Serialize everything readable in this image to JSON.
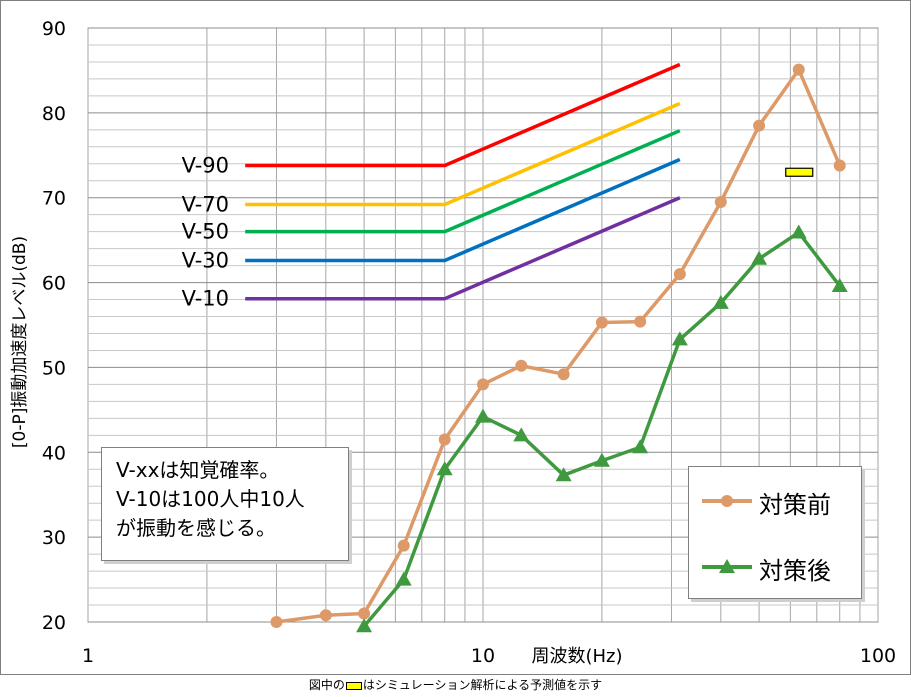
{
  "chart_data": {
    "type": "line",
    "xscale": "log",
    "xlim": [
      1,
      100
    ],
    "ylim": [
      20,
      90
    ],
    "yticks": [
      20,
      30,
      40,
      50,
      60,
      70,
      80,
      90
    ],
    "xtick_labels": [
      "1",
      "10",
      "100"
    ],
    "xlabel": "周波数(Hz)",
    "ylabel": "[0-P]振動加速度レベル(dB)",
    "grid": true,
    "legend_position": "bottom-right",
    "series": [
      {
        "name": "対策前",
        "color": "#dd9a68",
        "marker": "circle",
        "x": [
          5,
          6.3,
          8,
          10,
          12.5,
          16,
          20,
          25,
          31.5,
          40,
          50,
          63,
          80
        ],
        "y": [
          21,
          29,
          41.5,
          48,
          50.2,
          49.2,
          55.3,
          55.4,
          61,
          69.5,
          78.5,
          85.1,
          73.8
        ]
      },
      {
        "name": "対策後",
        "color": "#3f9a3f",
        "marker": "triangle",
        "x": [
          5,
          6.3,
          8,
          10,
          12.5,
          16,
          20,
          25,
          31.5,
          40,
          50,
          63,
          80
        ],
        "y": [
          19.5,
          25,
          38,
          44.2,
          42,
          37.3,
          39,
          40.6,
          53.3,
          57.6,
          62.8,
          65.9,
          59.6
        ]
      }
    ],
    "extra_points_before": {
      "x": [
        3,
        4
      ],
      "y": [
        20,
        20.8
      ]
    },
    "reference_lines": [
      {
        "label": "V-90",
        "color": "#ff0000",
        "x": [
          2.5,
          8,
          31.5
        ],
        "y": [
          73.8,
          73.8,
          85.7
        ]
      },
      {
        "label": "V-70",
        "color": "#ffc000",
        "x": [
          2.5,
          8,
          31.5
        ],
        "y": [
          69.2,
          69.2,
          81.1
        ]
      },
      {
        "label": "V-50",
        "color": "#00b050",
        "x": [
          2.5,
          8,
          31.5
        ],
        "y": [
          66.0,
          66.0,
          77.9
        ]
      },
      {
        "label": "V-30",
        "color": "#0070c0",
        "x": [
          2.5,
          8,
          31.5
        ],
        "y": [
          62.6,
          62.6,
          74.5
        ]
      },
      {
        "label": "V-10",
        "color": "#7030a0",
        "x": [
          2.5,
          8,
          31.5
        ],
        "y": [
          58.1,
          58.1,
          70.0
        ]
      }
    ],
    "simulation_marker": {
      "x": 63,
      "y": 73,
      "color": "#ffff00"
    },
    "note_lines": [
      "V-xxは知覚確率。",
      "V-10は100人中10人",
      "が振動を感じる。"
    ]
  },
  "footnote": {
    "before": "図中の",
    "after": "はシミュレーション解析による予測値を示す"
  }
}
